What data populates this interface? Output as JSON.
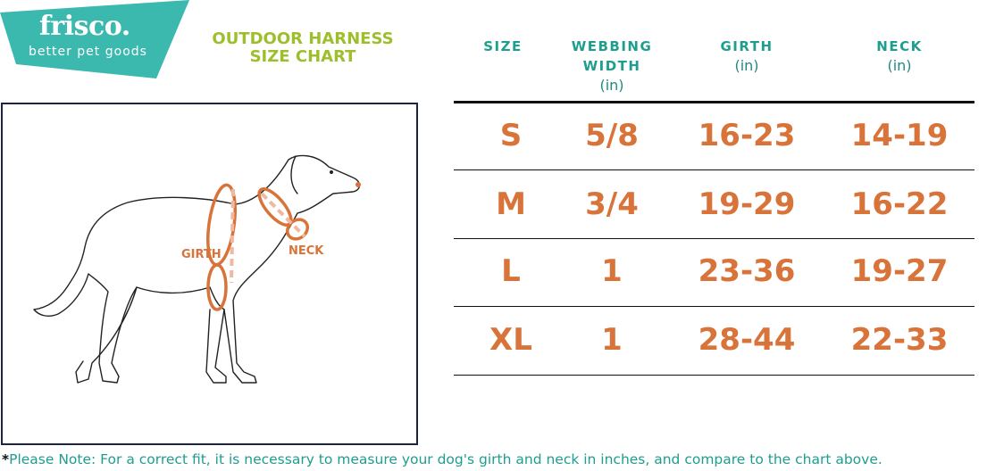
{
  "brand": {
    "name": "frisco.",
    "tagline": "better pet goods",
    "color": "#3bb9af"
  },
  "title": {
    "line1": "OUTDOOR HARNESS",
    "line2": "SIZE CHART",
    "color": "#9dbf2c"
  },
  "table": {
    "headers": [
      {
        "label": "SIZE",
        "unit": ""
      },
      {
        "label": "WEBBING WIDTH",
        "unit": "(in)"
      },
      {
        "label": "GIRTH",
        "unit": "(in)"
      },
      {
        "label": "NECK",
        "unit": "(in)"
      }
    ],
    "header_color": "#1f9d8f",
    "value_color": "#d8733a",
    "rows": [
      [
        "S",
        "5/8",
        "16-23",
        "14-19"
      ],
      [
        "M",
        "3/4",
        "19-29",
        "16-22"
      ],
      [
        "L",
        "1",
        "23-36",
        "19-27"
      ],
      [
        "XL",
        "1",
        "28-44",
        "22-33"
      ]
    ]
  },
  "diagram": {
    "girth_label": "GIRTH",
    "neck_label": "NECK"
  },
  "note": {
    "star": "*",
    "text": "Please Note: For a correct fit, it is necessary to measure your dog's girth and neck in inches, and compare to the chart above."
  }
}
